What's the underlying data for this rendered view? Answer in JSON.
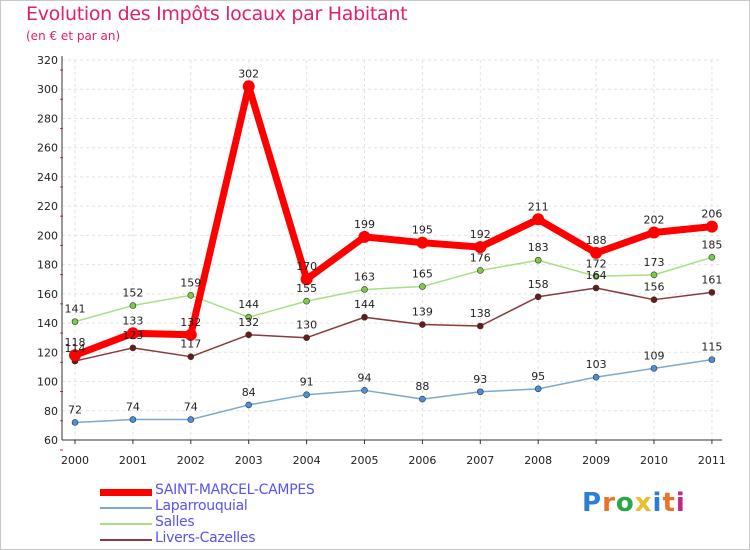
{
  "header": {
    "title": "Evolution des Impôts locaux par Habitant",
    "subtitle": "(en € et par an)"
  },
  "logo": {
    "text": "Proxiti",
    "letters": [
      "P",
      "r",
      "o",
      "x",
      "i",
      "t",
      "i"
    ],
    "colors": [
      "#2a7fd4",
      "#e8732a",
      "#2aa84a",
      "#e8c02a",
      "#2a7fd4",
      "#e8732a",
      "#c02a8a"
    ]
  },
  "chart_data": {
    "type": "line",
    "title": "Evolution des Impôts locaux par Habitant",
    "subtitle": "(en € et par an)",
    "categories": [
      "2000",
      "2001",
      "2002",
      "2003",
      "2004",
      "2005",
      "2006",
      "2007",
      "2008",
      "2009",
      "2010",
      "2011"
    ],
    "ylim": [
      60,
      320
    ],
    "yticks": [
      60,
      80,
      100,
      120,
      140,
      160,
      180,
      200,
      220,
      240,
      260,
      280,
      300,
      320
    ],
    "grid": true,
    "legend_position": "bottom-left",
    "series": [
      {
        "name": "SAINT-MARCEL-CAMPES",
        "color": "#ff0000",
        "marker_color": "#ff0000",
        "values": [
          118,
          133,
          132,
          302,
          170,
          199,
          195,
          192,
          211,
          188,
          202,
          206
        ],
        "labels": [
          "118",
          "133",
          "132",
          "302",
          "170",
          "199",
          "195",
          "192",
          "211",
          "188",
          "202",
          "206"
        ]
      },
      {
        "name": "Laparrouquial",
        "color": "#7aaad0",
        "marker_color": "#4a90d9",
        "values": [
          72,
          74,
          74,
          84,
          91,
          94,
          88,
          93,
          95,
          103,
          109,
          115
        ],
        "labels": [
          "72",
          "74",
          "74",
          "84",
          "91",
          "94",
          "88",
          "93",
          "95",
          "103",
          "109",
          "115"
        ]
      },
      {
        "name": "Salles",
        "color": "#a8e080",
        "marker_color": "#7acc44",
        "values": [
          141,
          152,
          159,
          144,
          155,
          163,
          165,
          176,
          183,
          172,
          173,
          185
        ],
        "labels": [
          "141",
          "152",
          "159",
          "144",
          "155",
          "163",
          "165",
          "176",
          "183",
          "172",
          "173",
          "185"
        ]
      },
      {
        "name": "Livers-Cazelles",
        "color": "#8a3a3a",
        "marker_color": "#6a1a1a",
        "values": [
          114,
          123,
          117,
          132,
          130,
          144,
          139,
          138,
          158,
          164,
          156,
          161
        ],
        "labels": [
          "114",
          "123",
          "117",
          "132",
          "130",
          "144",
          "139",
          "138",
          "158",
          "164",
          "156",
          "161"
        ]
      }
    ]
  }
}
